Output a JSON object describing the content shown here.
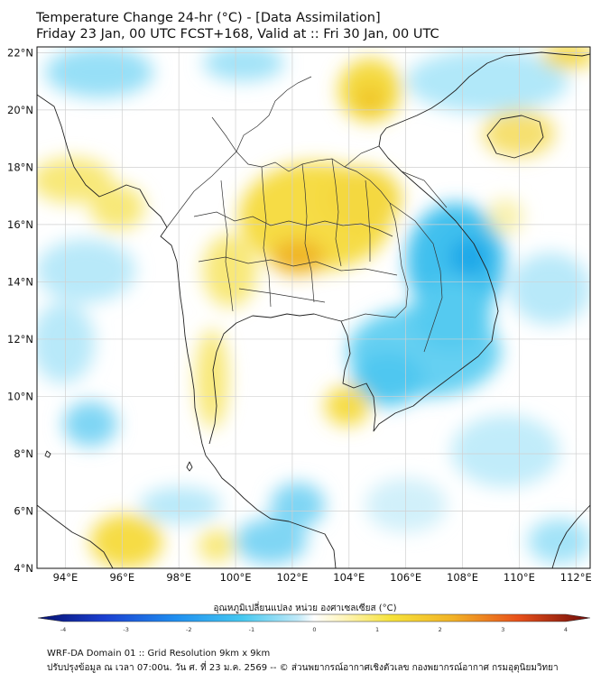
{
  "header": {
    "title_line1": "Temperature Change 24-hr (°C) - [Data Assimilation]",
    "title_line2": "Friday 23 Jan, 00 UTC FCST+168, Valid at :: Fri 30 Jan, 00 UTC"
  },
  "map": {
    "lat_labels": [
      "22°N",
      "20°N",
      "18°N",
      "16°N",
      "14°N",
      "12°N",
      "10°N",
      "8°N",
      "6°N",
      "4°N"
    ],
    "lon_labels": [
      "94°E",
      "96°E",
      "98°E",
      "100°E",
      "102°E",
      "104°E",
      "106°E",
      "108°E",
      "110°E",
      "112°E"
    ],
    "lat_values": [
      22,
      20,
      18,
      16,
      14,
      12,
      10,
      8,
      6,
      4
    ],
    "lon_values": [
      94,
      96,
      98,
      100,
      102,
      104,
      106,
      108,
      110,
      112
    ],
    "extent": {
      "lon_min": 93.0,
      "lon_max": 112.5,
      "lat_min": 4.0,
      "lat_max": 22.2
    },
    "colors": {
      "cool": "#3cc0ec",
      "warm": "#f2d21c",
      "hot": "#f0a020",
      "land_line": "#222222",
      "grid": "#d8d8d8"
    }
  },
  "colorbar": {
    "label": "อุณหภูมิเปลี่ยนแปลง หน่วย องศาเซลเซียส (°C)",
    "ticks": [
      "-4",
      "-3",
      "-2",
      "-1",
      "0",
      "1",
      "2",
      "3",
      "4"
    ],
    "tick_values": [
      -4,
      -3,
      -2,
      -1,
      0,
      1,
      2,
      3,
      4
    ],
    "min": -4,
    "max": 4
  },
  "footer": {
    "line1": "WRF-DA Domain 01 :: Grid Resolution 9km x 9km",
    "line2": "ปรับปรุงข้อมูล ณ เวลา 07:00น. วัน ศ. ที่ 23 ม.ค. 2569 -- © ส่วนพยากรณ์อากาศเชิงตัวเลข กองพยากรณ์อากาศ กรมอุตุนิยมวิทยา"
  }
}
